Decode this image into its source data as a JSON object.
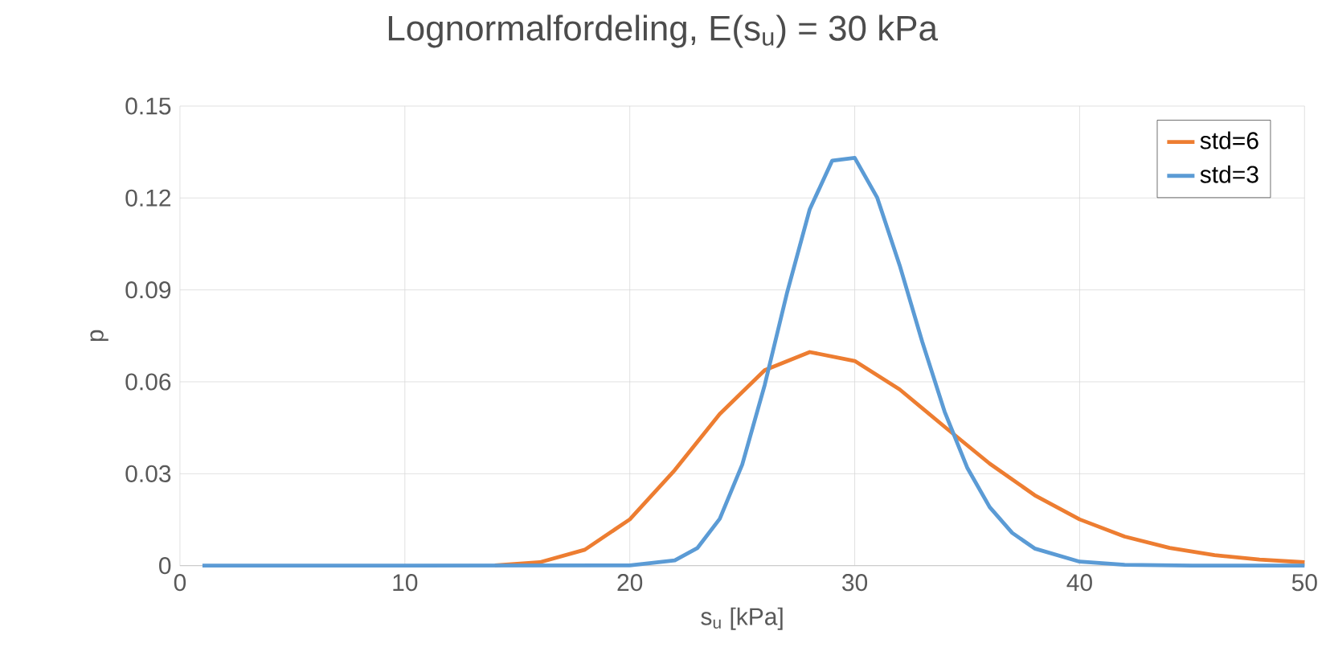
{
  "chart_data": {
    "type": "line",
    "title": "Lognormalfordeling, E(s$_{u}$) = 30 kPa",
    "xlabel": "s$_{u}$ [kPa]",
    "ylabel": "p",
    "xlim": [
      0,
      50
    ],
    "xticks": [
      0,
      10,
      20,
      30,
      40,
      50
    ],
    "ylim": [
      0,
      0.15
    ],
    "yticks": [
      0,
      0.03,
      0.06,
      0.09,
      0.12,
      0.15
    ],
    "grid": true,
    "legend": "top right",
    "marker": "none",
    "line_style": "solid",
    "series": [
      {
        "name": "std=6",
        "color": "#ed7d31",
        "x": [
          14,
          16,
          18,
          20,
          22,
          24,
          26,
          28,
          30,
          32,
          34,
          36,
          38,
          40,
          42,
          44,
          46,
          48,
          50
        ],
        "values": [
          0.0001,
          0.0011,
          0.0052,
          0.0151,
          0.0312,
          0.0495,
          0.0638,
          0.0697,
          0.0668,
          0.0575,
          0.0453,
          0.0333,
          0.023,
          0.0151,
          0.0095,
          0.0058,
          0.0034,
          0.002,
          0.0011
        ]
      },
      {
        "name": "std=3",
        "color": "#5b9bd5",
        "x": [
          1,
          10,
          20,
          22,
          23,
          24,
          25,
          26,
          27,
          28,
          29,
          30,
          31,
          32,
          33,
          34,
          35,
          36,
          37,
          38,
          40,
          42,
          45,
          50
        ],
        "values": [
          0,
          0,
          0.0001,
          0.0017,
          0.0057,
          0.0153,
          0.033,
          0.059,
          0.0893,
          0.1163,
          0.1322,
          0.1331,
          0.1201,
          0.098,
          0.0731,
          0.0502,
          0.032,
          0.0191,
          0.0107,
          0.0056,
          0.0013,
          0.0003,
          0,
          0
        ]
      }
    ]
  }
}
